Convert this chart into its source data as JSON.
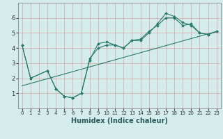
{
  "xlabel": "Humidex (Indice chaleur)",
  "xlim": [
    -0.5,
    23.5
  ],
  "ylim": [
    0,
    7
  ],
  "xticks": [
    0,
    1,
    2,
    3,
    4,
    5,
    6,
    7,
    8,
    9,
    10,
    11,
    12,
    13,
    14,
    15,
    16,
    17,
    18,
    19,
    20,
    21,
    22,
    23
  ],
  "yticks": [
    1,
    2,
    3,
    4,
    5,
    6
  ],
  "bg_color": "#d4ecec",
  "grid_color": "#d88888",
  "line_color": "#2a7a6a",
  "line1_x": [
    0,
    1,
    3,
    4,
    5,
    6,
    7,
    8,
    9,
    10,
    11,
    12,
    13,
    14,
    15,
    16,
    17,
    18,
    19,
    20,
    21,
    22,
    23
  ],
  "line1_y": [
    4.2,
    2.0,
    2.5,
    1.3,
    0.8,
    0.7,
    1.0,
    3.2,
    4.3,
    4.4,
    4.2,
    4.0,
    4.5,
    4.5,
    5.0,
    5.6,
    6.3,
    6.1,
    5.7,
    5.5,
    5.0,
    4.9,
    5.1
  ],
  "line2_x": [
    0,
    1,
    3,
    4,
    5,
    6,
    7,
    8,
    9,
    10,
    11,
    12,
    13,
    14,
    15,
    16,
    17,
    18,
    19,
    20,
    21,
    22,
    23
  ],
  "line2_y": [
    4.2,
    2.0,
    2.5,
    1.3,
    0.8,
    0.7,
    1.0,
    3.3,
    4.0,
    4.2,
    4.2,
    4.0,
    4.5,
    4.6,
    5.1,
    5.5,
    6.0,
    6.0,
    5.5,
    5.6,
    5.0,
    4.9,
    5.1
  ],
  "trend_x": [
    0,
    23
  ],
  "trend_y": [
    1.5,
    5.1
  ],
  "xlabel_color": "#2a5a5a",
  "xlabel_fontsize": 7,
  "tick_fontsize": 5,
  "linewidth": 0.8,
  "markersize": 2.0
}
